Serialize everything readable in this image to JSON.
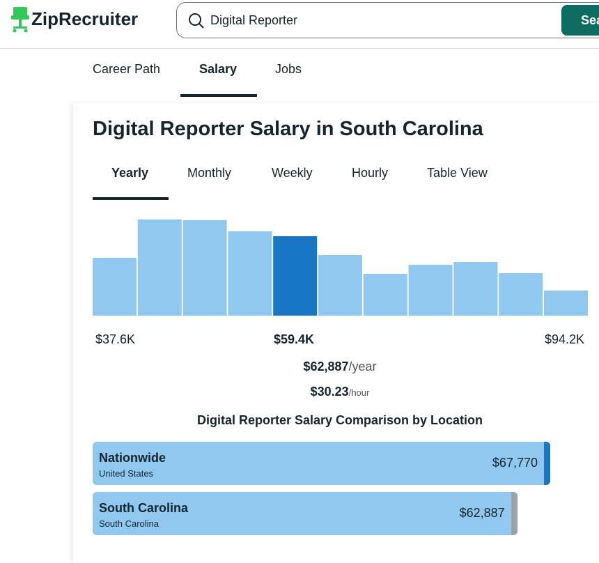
{
  "header": {
    "logo": "ZipRecruiter",
    "search_query": "Digital Reporter",
    "search_button": "Search"
  },
  "nav_tabs": [
    "Career Path",
    "Salary",
    "Jobs"
  ],
  "title": "Digital Reporter Salary in South Carolina",
  "period_tabs": [
    "Yearly",
    "Monthly",
    "Weekly",
    "Hourly",
    "Table View"
  ],
  "chart_data": {
    "type": "bar",
    "values": [
      83,
      138,
      137,
      121,
      114,
      87,
      60,
      73,
      77,
      61,
      36
    ],
    "color": "#90c8f0",
    "highlight_color": "#1877c5",
    "highlight_index": 4,
    "range_labels": [
      "$37.6K",
      "$59.4K",
      "$94.2K"
    ]
  },
  "summary": {
    "annual": "$62,887",
    "annual_unit": "/year",
    "hourly": "$30.23",
    "hourly_unit": "/hour"
  },
  "comparison": {
    "title": "Digital Reporter Salary Comparison by Location",
    "rows": [
      {
        "name": "Nationwide",
        "location": "United States",
        "value": 67770,
        "value_label": "$67,770",
        "accent": "#1877c5"
      },
      {
        "name": "South Carolina",
        "location": "South Carolina",
        "value": 62887,
        "value_label": "$62,887",
        "accent": "#9aa3a8"
      }
    ]
  }
}
